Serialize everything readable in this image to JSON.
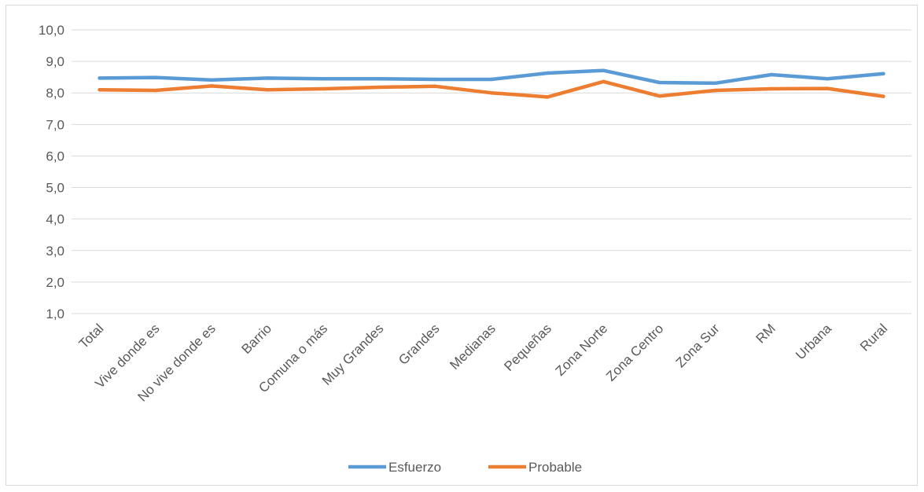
{
  "chart_data": {
    "type": "line",
    "title": "",
    "xlabel": "",
    "ylabel": "",
    "ylim": [
      1.0,
      10.0
    ],
    "yticks": [
      "1,0",
      "2,0",
      "3,0",
      "4,0",
      "5,0",
      "6,0",
      "7,0",
      "8,0",
      "9,0",
      "10,0"
    ],
    "grid": true,
    "legend": "bottom",
    "categories": [
      "Total",
      "Vive donde es",
      "No vive donde es",
      "Barrio",
      "Comuna o más",
      "Muy Grandes",
      "Grandes",
      "Medianas",
      "Pequeñas",
      "Zona Norte",
      "Zona Centro",
      "Zona Sur",
      "RM",
      "Urbana",
      "Rural"
    ],
    "series": [
      {
        "name": "Esfuerzo",
        "color": "#5b9bd5",
        "values": [
          8.47,
          8.49,
          8.41,
          8.47,
          8.45,
          8.45,
          8.43,
          8.43,
          8.63,
          8.71,
          8.33,
          8.31,
          8.58,
          8.45,
          8.61
        ]
      },
      {
        "name": "Probable",
        "color": "#ed7d31",
        "values": [
          8.1,
          8.08,
          8.22,
          8.1,
          8.13,
          8.18,
          8.21,
          8.0,
          7.87,
          8.36,
          7.9,
          8.08,
          8.13,
          8.14,
          7.89
        ]
      }
    ]
  }
}
